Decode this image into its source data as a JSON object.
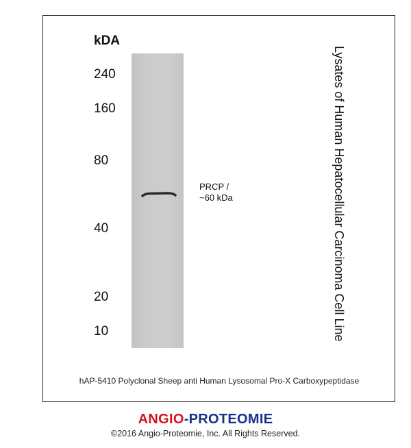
{
  "axis": {
    "unit_label": "kDA",
    "markers": [
      "240",
      "160",
      "80",
      "40",
      "20",
      "10"
    ]
  },
  "band": {
    "label_line1": "PRCP  /",
    "label_line2": "~60 kDa"
  },
  "sample_label": "Lysates of Human Hepatocellular Carcinoma Cell Line",
  "caption": "hAP-5410 Polyclonal Sheep anti Human Lysosomal Pro-X Carboxypeptidase",
  "logo": {
    "part1": "ANGIO",
    "sep": "-",
    "part2": "PROTEOMIE",
    "color1": "#d7141a",
    "color2": "#1a2f8a"
  },
  "copyright": "©2016 Angio-Proteomie, Inc.  All Rights Reserved."
}
